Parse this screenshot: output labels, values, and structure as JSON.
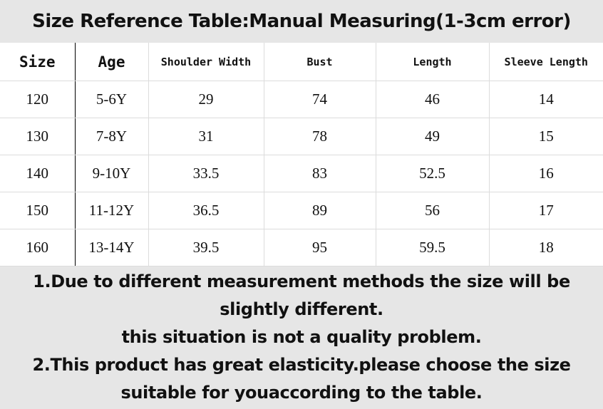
{
  "title": "Size Reference Table:Manual Measuring(1-3cm error)",
  "table": {
    "headers": [
      "Size",
      "Age",
      "Shoulder Width",
      "Bust",
      "Length",
      "Sleeve Length"
    ],
    "rows": [
      [
        "120",
        "5-6Y",
        "29",
        "74",
        "46",
        "14"
      ],
      [
        "130",
        "7-8Y",
        "31",
        "78",
        "49",
        "15"
      ],
      [
        "140",
        "9-10Y",
        "33.5",
        "83",
        "52.5",
        "16"
      ],
      [
        "150",
        "11-12Y",
        "36.5",
        "89",
        "56",
        "17"
      ],
      [
        "160",
        "13-14Y",
        "39.5",
        "95",
        "59.5",
        "18"
      ]
    ]
  },
  "notes": [
    "1.Due to different measurement methods the size will be",
    "slightly different.",
    "this situation is not a quality problem.",
    "2.This product has great elasticity.please choose the size",
    "suitable for youaccording to the table."
  ]
}
